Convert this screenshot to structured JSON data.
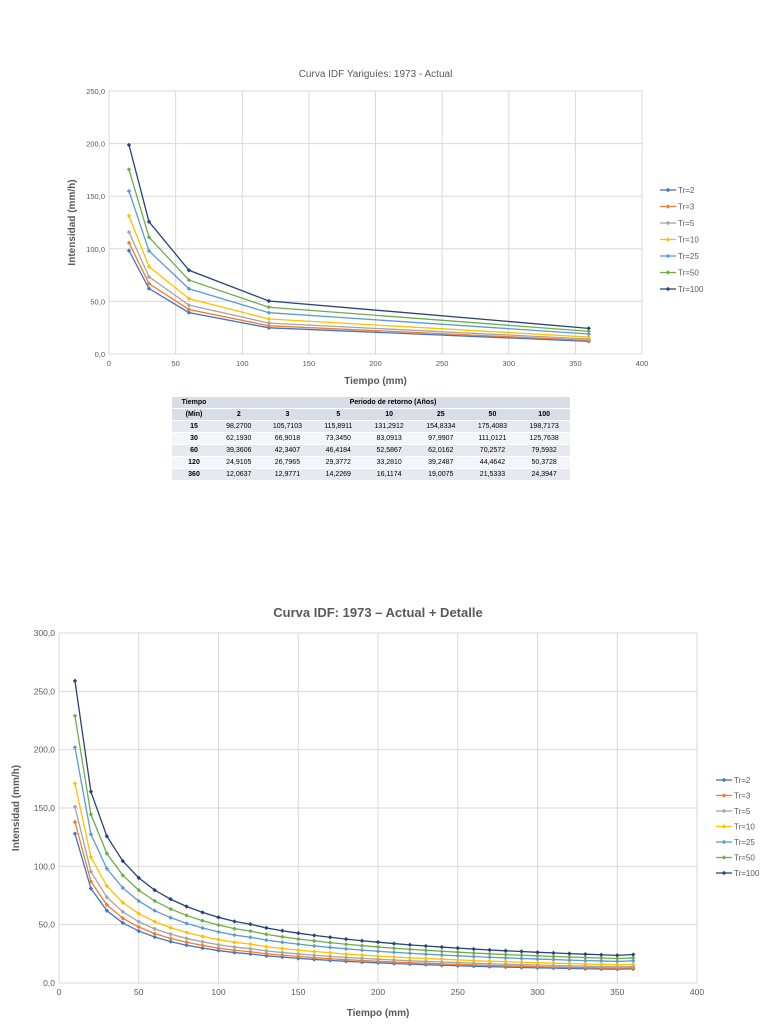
{
  "chart_data": [
    {
      "type": "line",
      "title": "Curva IDF Yariguíes: 1973 - Actual",
      "xlabel": "Tiempo (mm)",
      "ylabel": "Intensidad (mm/h)",
      "xlim": [
        0,
        400
      ],
      "ylim": [
        0,
        250
      ],
      "xticks": [
        "0",
        "50",
        "100",
        "150",
        "200",
        "250",
        "300",
        "350",
        "400"
      ],
      "yticks": [
        "0,0",
        "50,0",
        "100,0",
        "150,0",
        "200,0",
        "250,0"
      ],
      "grid": true,
      "legend_position": "right",
      "x": [
        15,
        30,
        60,
        120,
        360
      ],
      "series": [
        {
          "name": "Tr=2",
          "color": "#4472c4",
          "values": [
            98.27,
            62.193,
            39.3606,
            24.9105,
            12.0637
          ]
        },
        {
          "name": "Tr=3",
          "color": "#ed7d31",
          "values": [
            105.7103,
            66.9018,
            42.3407,
            26.7965,
            12.9771
          ]
        },
        {
          "name": "Tr=5",
          "color": "#a5a5a5",
          "values": [
            115.8911,
            73.345,
            46.4184,
            29.3772,
            14.2269
          ]
        },
        {
          "name": "Tr=10",
          "color": "#ffc000",
          "values": [
            131.2912,
            83.0913,
            52.5867,
            33.281,
            16.1174
          ]
        },
        {
          "name": "Tr=25",
          "color": "#5b9bd5",
          "values": [
            154.8334,
            97.9907,
            62.0162,
            39.2487,
            19.0075
          ]
        },
        {
          "name": "Tr=50",
          "color": "#70ad47",
          "values": [
            175.4083,
            111.0121,
            70.2572,
            44.4642,
            21.5333
          ]
        },
        {
          "name": "Tr=100",
          "color": "#264478",
          "values": [
            198.7173,
            125.7638,
            79.5932,
            50.3728,
            24.3947
          ]
        }
      ]
    },
    {
      "type": "line",
      "title": "Curva IDF: 1973 – Actual + Detalle",
      "xlabel": "Tiempo (mm)",
      "ylabel": "Intensidad (mm/h)",
      "xlim": [
        0,
        400
      ],
      "ylim": [
        0,
        300
      ],
      "xticks": [
        "0",
        "50",
        "100",
        "150",
        "200",
        "250",
        "300",
        "350",
        "400"
      ],
      "yticks": [
        "0,0",
        "50,0",
        "100,0",
        "150,0",
        "200,0",
        "250,0",
        "300,0"
      ],
      "grid": true,
      "legend_position": "right",
      "x": [
        10,
        20,
        30,
        40,
        50,
        60,
        70,
        80,
        90,
        100,
        110,
        120,
        130,
        140,
        150,
        160,
        170,
        180,
        190,
        200,
        210,
        220,
        230,
        240,
        250,
        260,
        270,
        280,
        290,
        300,
        310,
        320,
        330,
        340,
        350,
        360
      ],
      "series": [
        {
          "name": "Tr=2",
          "color": "#4472c4",
          "values": [
            128,
            81,
            62,
            51.5,
            44.5,
            39.4,
            35.5,
            32.4,
            29.9,
            27.8,
            26.1,
            24.9,
            23.3,
            22.2,
            21.1,
            20.2,
            19.4,
            18.6,
            17.9,
            17.3,
            16.7,
            16.2,
            15.7,
            15.2,
            14.8,
            14.4,
            14,
            13.7,
            13.3,
            13,
            12.8,
            12.5,
            12.2,
            12,
            11.8,
            12.1
          ]
        },
        {
          "name": "Tr=3",
          "color": "#ed7d31",
          "values": [
            138,
            87,
            67,
            55.5,
            48,
            42.3,
            38.2,
            34.9,
            32.2,
            29.9,
            28.1,
            26.8,
            25.1,
            23.8,
            22.7,
            21.7,
            20.8,
            20,
            19.3,
            18.6,
            18,
            17.4,
            16.9,
            16.4,
            15.9,
            15.5,
            15.1,
            14.7,
            14.3,
            14,
            13.7,
            13.4,
            13.2,
            12.9,
            12.7,
            13
          ]
        },
        {
          "name": "Tr=5",
          "color": "#a5a5a5",
          "values": [
            151,
            95.5,
            73.5,
            61,
            52.5,
            46.4,
            41.9,
            38.2,
            35.3,
            32.8,
            30.8,
            29.4,
            27.5,
            26.1,
            24.9,
            23.8,
            22.8,
            21.9,
            21.1,
            20.4,
            19.7,
            19.1,
            18.5,
            18,
            17.5,
            17,
            16.5,
            16.1,
            15.7,
            15.4,
            15,
            14.7,
            14.4,
            14.1,
            13.9,
            14.2
          ]
        },
        {
          "name": "Tr=10",
          "color": "#ffc000",
          "values": [
            171,
            108,
            83.1,
            69,
            59.5,
            52.6,
            47.4,
            43.3,
            39.9,
            37.2,
            34.9,
            33.3,
            31.2,
            29.6,
            28.2,
            27,
            25.9,
            24.8,
            23.9,
            23.1,
            22.3,
            21.6,
            21,
            20.4,
            19.8,
            19.2,
            18.7,
            18.3,
            17.8,
            17.4,
            17,
            16.7,
            16.3,
            16,
            15.7,
            16.1
          ]
        },
        {
          "name": "Tr=25",
          "color": "#5b9bd5",
          "values": [
            202,
            127.5,
            98,
            81.5,
            70.2,
            62,
            56,
            51.1,
            47.1,
            43.8,
            41.1,
            39.2,
            36.8,
            34.9,
            33.3,
            31.8,
            30.5,
            29.3,
            28.2,
            27.2,
            26.3,
            25.5,
            24.7,
            24,
            23.3,
            22.7,
            22.1,
            21.5,
            21,
            20.5,
            20.1,
            19.6,
            19.2,
            18.9,
            18.5,
            19
          ]
        },
        {
          "name": "Tr=50",
          "color": "#70ad47",
          "values": [
            229,
            144.5,
            111,
            92.3,
            79.6,
            70.3,
            63.4,
            57.9,
            53.4,
            49.7,
            46.6,
            44.5,
            41.7,
            39.6,
            37.7,
            36.1,
            34.6,
            33.2,
            32,
            30.9,
            29.8,
            28.9,
            28,
            27.2,
            26.4,
            25.7,
            25,
            24.4,
            23.8,
            23.3,
            22.7,
            22.3,
            21.8,
            21.4,
            21,
            21.5
          ]
        },
        {
          "name": "Tr=100",
          "color": "#264478",
          "values": [
            259,
            164,
            125.8,
            104.5,
            90.1,
            79.6,
            71.8,
            65.6,
            60.5,
            56.3,
            52.8,
            50.4,
            47.2,
            44.8,
            42.7,
            40.8,
            39.2,
            37.6,
            36.2,
            35,
            33.8,
            32.7,
            31.7,
            30.8,
            29.9,
            29.1,
            28.3,
            27.6,
            27,
            26.3,
            25.8,
            25.2,
            24.7,
            24.2,
            23.7,
            24.4
          ]
        }
      ]
    }
  ],
  "table": {
    "col_header": "Tiempo",
    "col_subheader": "(Min)",
    "group_header": "Periodo de retorno (Años)",
    "periods": [
      "2",
      "3",
      "5",
      "10",
      "25",
      "50",
      "100"
    ],
    "rows": [
      {
        "t": "15",
        "values": [
          "98,2700",
          "105,7103",
          "115,8911",
          "131,2912",
          "154,8334",
          "175,4083",
          "198,7173"
        ]
      },
      {
        "t": "30",
        "values": [
          "62,1930",
          "66,9018",
          "73,3450",
          "83,0913",
          "97,9907",
          "111,0121",
          "125,7638"
        ]
      },
      {
        "t": "60",
        "values": [
          "39,3606",
          "42,3407",
          "46,4184",
          "52,5867",
          "62,0162",
          "70,2572",
          "79,5932"
        ]
      },
      {
        "t": "120",
        "values": [
          "24,9105",
          "26,7965",
          "29,3772",
          "33,2810",
          "39,2487",
          "44,4642",
          "50,3728"
        ]
      },
      {
        "t": "360",
        "values": [
          "12,0637",
          "12,9771",
          "14,2269",
          "16,1174",
          "19,0075",
          "21,5333",
          "24,3947"
        ]
      }
    ]
  }
}
